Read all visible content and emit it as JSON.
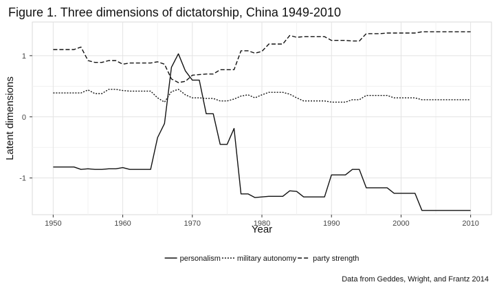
{
  "chart_data": {
    "type": "line",
    "title": "Figure 1. Three dimensions of dictatorship, China 1949-2010",
    "xlabel": "Year",
    "ylabel": "Latent dimensions",
    "caption": "Data from Geddes, Wright, and Frantz 2014",
    "xlim": [
      1947,
      2013
    ],
    "ylim": [
      -1.6,
      1.55
    ],
    "x_ticks": [
      1950,
      1960,
      1970,
      1980,
      1990,
      2000,
      2010
    ],
    "x_tick_labels": [
      "1950",
      "1960",
      "1970",
      "1980",
      "1990",
      "2000",
      "2010"
    ],
    "y_ticks": [
      1,
      0,
      -1
    ],
    "y_tick_labels": [
      "1",
      "0",
      "-1"
    ],
    "grid": true,
    "legend_position": "bottom",
    "colors": {
      "line": "#111111",
      "grid_major": "#e3e3e3",
      "grid_minor": "#f1f1f1",
      "frame": "#d9d9d9"
    },
    "series": [
      {
        "name": "personalism",
        "dash": "solid",
        "x": [
          1950,
          1951,
          1952,
          1953,
          1954,
          1955,
          1956,
          1957,
          1958,
          1959,
          1960,
          1961,
          1962,
          1963,
          1964,
          1965,
          1966,
          1967,
          1968,
          1969,
          1970,
          1971,
          1972,
          1973,
          1974,
          1975,
          1976,
          1977,
          1978,
          1979,
          1980,
          1981,
          1982,
          1983,
          1984,
          1985,
          1986,
          1987,
          1988,
          1989,
          1990,
          1991,
          1992,
          1993,
          1994,
          1995,
          1996,
          1997,
          1998,
          1999,
          2000,
          2001,
          2002,
          2003,
          2004,
          2005,
          2006,
          2007,
          2008,
          2009,
          2010
        ],
        "y": [
          -0.82,
          -0.82,
          -0.82,
          -0.82,
          -0.86,
          -0.85,
          -0.86,
          -0.86,
          -0.85,
          -0.85,
          -0.83,
          -0.86,
          -0.86,
          -0.86,
          -0.86,
          -0.34,
          -0.11,
          0.81,
          1.03,
          0.75,
          0.6,
          0.6,
          0.05,
          0.05,
          -0.45,
          -0.45,
          -0.19,
          -1.26,
          -1.26,
          -1.32,
          -1.31,
          -1.3,
          -1.3,
          -1.3,
          -1.21,
          -1.22,
          -1.31,
          -1.31,
          -1.31,
          -1.31,
          -0.95,
          -0.95,
          -0.95,
          -0.86,
          -0.86,
          -1.16,
          -1.16,
          -1.16,
          -1.16,
          -1.25,
          -1.25,
          -1.25,
          -1.25,
          -1.53,
          -1.53,
          -1.53,
          -1.53,
          -1.53,
          -1.53,
          -1.53,
          -1.53
        ]
      },
      {
        "name": "military autonomy",
        "dash": "dotted",
        "x": [
          1950,
          1951,
          1952,
          1953,
          1954,
          1955,
          1956,
          1957,
          1958,
          1959,
          1960,
          1961,
          1962,
          1963,
          1964,
          1965,
          1966,
          1967,
          1968,
          1969,
          1970,
          1971,
          1972,
          1973,
          1974,
          1975,
          1976,
          1977,
          1978,
          1979,
          1980,
          1981,
          1982,
          1983,
          1984,
          1985,
          1986,
          1987,
          1988,
          1989,
          1990,
          1991,
          1992,
          1993,
          1994,
          1995,
          1996,
          1997,
          1998,
          1999,
          2000,
          2001,
          2002,
          2003,
          2004,
          2005,
          2006,
          2007,
          2008,
          2009,
          2010
        ],
        "y": [
          0.39,
          0.39,
          0.39,
          0.39,
          0.39,
          0.44,
          0.38,
          0.38,
          0.45,
          0.45,
          0.43,
          0.42,
          0.42,
          0.42,
          0.42,
          0.31,
          0.24,
          0.41,
          0.45,
          0.36,
          0.31,
          0.31,
          0.3,
          0.3,
          0.26,
          0.26,
          0.29,
          0.34,
          0.36,
          0.31,
          0.36,
          0.4,
          0.4,
          0.4,
          0.37,
          0.31,
          0.26,
          0.26,
          0.26,
          0.26,
          0.24,
          0.24,
          0.24,
          0.28,
          0.28,
          0.35,
          0.35,
          0.35,
          0.35,
          0.31,
          0.31,
          0.31,
          0.31,
          0.28,
          0.28,
          0.28,
          0.28,
          0.28,
          0.28,
          0.28,
          0.28
        ]
      },
      {
        "name": "party strength",
        "dash": "dashed",
        "x": [
          1950,
          1951,
          1952,
          1953,
          1954,
          1955,
          1956,
          1957,
          1958,
          1959,
          1960,
          1961,
          1962,
          1963,
          1964,
          1965,
          1966,
          1967,
          1968,
          1969,
          1970,
          1971,
          1972,
          1973,
          1974,
          1975,
          1976,
          1977,
          1978,
          1979,
          1980,
          1981,
          1982,
          1983,
          1984,
          1985,
          1986,
          1987,
          1988,
          1989,
          1990,
          1991,
          1992,
          1993,
          1994,
          1995,
          1996,
          1997,
          1998,
          1999,
          2000,
          2001,
          2002,
          2003,
          2004,
          2005,
          2006,
          2007,
          2008,
          2009,
          2010
        ],
        "y": [
          1.1,
          1.1,
          1.1,
          1.1,
          1.14,
          0.92,
          0.89,
          0.89,
          0.92,
          0.92,
          0.86,
          0.88,
          0.88,
          0.88,
          0.88,
          0.9,
          0.86,
          0.62,
          0.56,
          0.58,
          0.68,
          0.69,
          0.7,
          0.7,
          0.77,
          0.77,
          0.77,
          1.08,
          1.08,
          1.04,
          1.07,
          1.19,
          1.19,
          1.19,
          1.33,
          1.3,
          1.31,
          1.31,
          1.31,
          1.31,
          1.25,
          1.25,
          1.25,
          1.24,
          1.24,
          1.36,
          1.36,
          1.36,
          1.37,
          1.37,
          1.37,
          1.37,
          1.37,
          1.39,
          1.39,
          1.39,
          1.39,
          1.39,
          1.39,
          1.39,
          1.39
        ]
      }
    ]
  }
}
